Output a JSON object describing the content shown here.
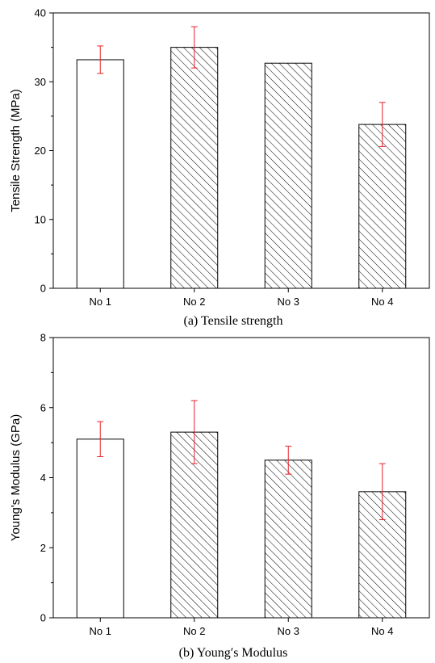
{
  "chart_data": [
    {
      "type": "bar",
      "caption": "(a) Tensile strength",
      "ylabel": "Tensile Strength (MPa)",
      "xlabel": "",
      "categories": [
        "No 1",
        "No 2",
        "No 3",
        "No 4"
      ],
      "values": [
        33.2,
        35.0,
        32.7,
        23.8
      ],
      "error_low": [
        31.2,
        32.0,
        32.7,
        20.6
      ],
      "error_high": [
        35.2,
        38.0,
        32.7,
        27.0
      ],
      "fill_patterns": [
        "none",
        "hatch",
        "hatch",
        "hatch"
      ],
      "ylim": [
        0,
        40
      ],
      "yticks": [
        0,
        10,
        20,
        30,
        40
      ],
      "error_color": "#e8212a",
      "grid": false
    },
    {
      "type": "bar",
      "caption": "(b) Young′s Modulus",
      "ylabel": "Young's Modulus (GPa)",
      "xlabel": "",
      "categories": [
        "No 1",
        "No 2",
        "No 3",
        "No 4"
      ],
      "values": [
        5.1,
        5.3,
        4.5,
        3.6
      ],
      "error_low": [
        4.6,
        4.4,
        4.1,
        2.8
      ],
      "error_high": [
        5.6,
        6.2,
        4.9,
        4.4
      ],
      "fill_patterns": [
        "none",
        "hatch",
        "hatch",
        "hatch"
      ],
      "ylim": [
        0,
        8
      ],
      "yticks": [
        0,
        2,
        4,
        6,
        8
      ],
      "error_color": "#e8212a",
      "grid": false
    }
  ]
}
